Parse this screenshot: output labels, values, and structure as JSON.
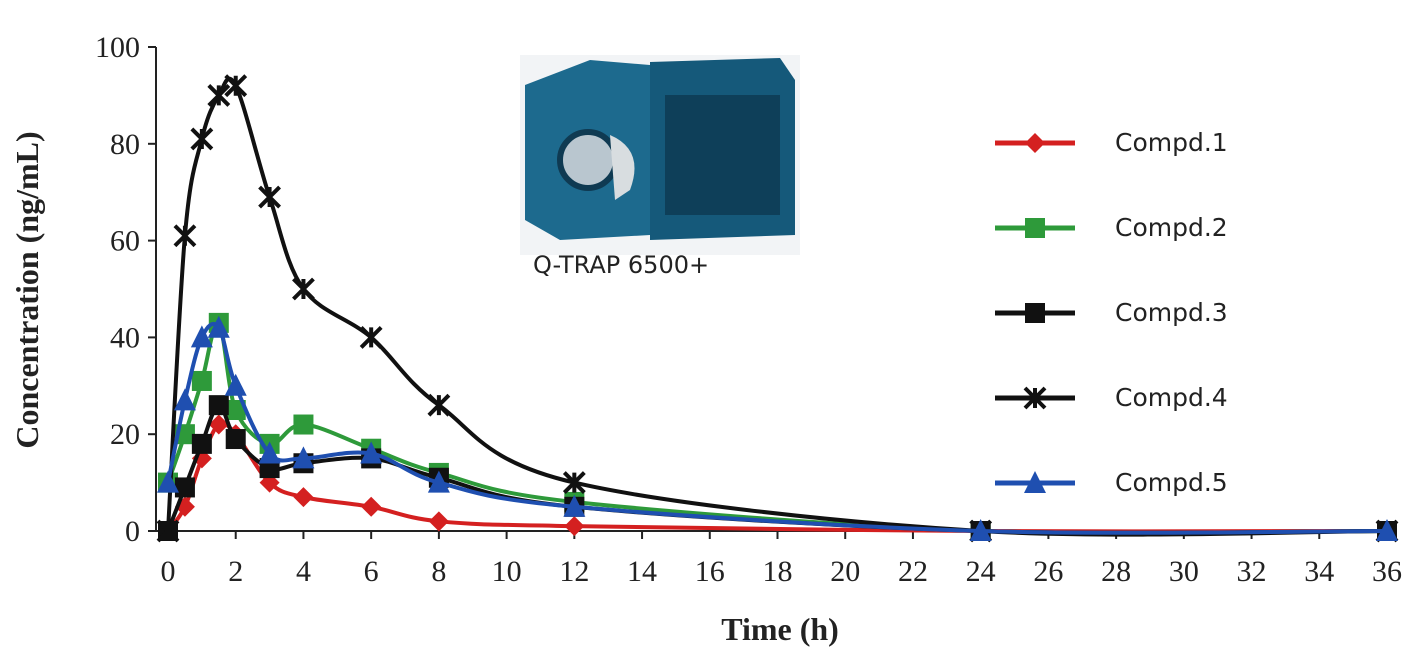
{
  "chart_data": {
    "type": "line",
    "x_label": "Time (h)",
    "y_label": "Concentration (ng/mL)",
    "annotation": "Q-TRAP 6500+",
    "x": [
      0,
      0.5,
      1,
      1.5,
      2,
      3,
      4,
      6,
      8,
      12,
      24,
      36
    ],
    "series": [
      {
        "name": "Compd.1",
        "color": "#d42020",
        "marker": "diamond",
        "values": [
          0,
          5,
          15,
          22,
          20,
          10,
          7,
          5,
          2,
          1,
          0,
          0
        ]
      },
      {
        "name": "Compd.2",
        "color": "#2e9a3a",
        "marker": "square",
        "values": [
          10,
          20,
          31,
          43,
          25,
          18,
          22,
          17,
          12,
          6,
          0,
          0
        ]
      },
      {
        "name": "Compd.3",
        "color": "#111111",
        "marker": "square",
        "values": [
          0,
          9,
          18,
          26,
          19,
          13,
          14,
          15,
          11,
          5,
          0,
          0
        ]
      },
      {
        "name": "Compd.4",
        "color": "#111111",
        "marker": "star",
        "values": [
          0,
          61,
          81,
          90,
          92,
          69,
          50,
          40,
          26,
          10,
          0,
          0
        ]
      },
      {
        "name": "Compd.5",
        "color": "#1f4fb0",
        "marker": "triangle",
        "values": [
          10,
          27,
          40,
          42,
          30,
          16,
          15,
          16,
          10,
          5,
          0,
          0
        ]
      }
    ],
    "xlim": [
      0,
      36
    ],
    "ylim": [
      0,
      100
    ],
    "xticks": [
      0,
      2,
      4,
      6,
      8,
      10,
      12,
      14,
      16,
      18,
      20,
      22,
      24,
      26,
      28,
      30,
      32,
      34,
      36
    ],
    "yticks": [
      0,
      20,
      40,
      60,
      80,
      100
    ],
    "grid": false,
    "legend": "right"
  }
}
